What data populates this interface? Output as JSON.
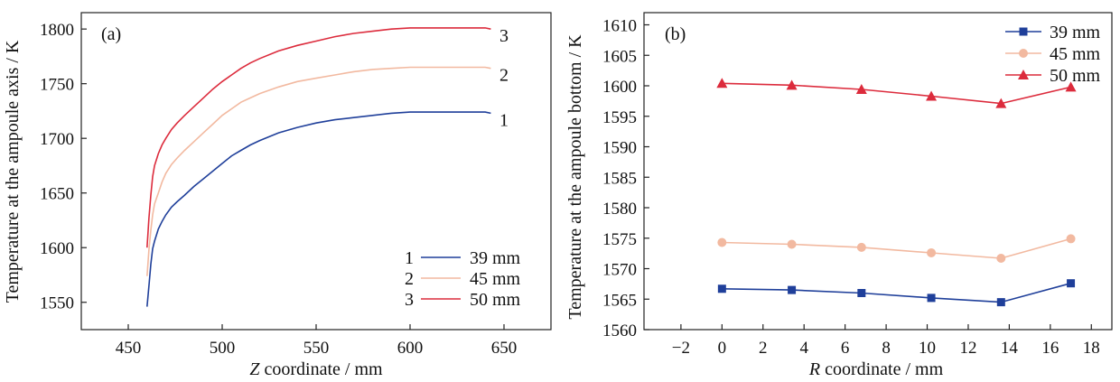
{
  "colors": {
    "39mm": "#1f3f9a",
    "45mm": "#f2b9a0",
    "50mm": "#dc2b3c",
    "axis": "#222222"
  },
  "chart_data": [
    {
      "type": "line",
      "panel_label": "(a)",
      "xlabel_italic": "Z",
      "xlabel_rest": " coordinate / mm",
      "ylabel": "Temperature at the ampoule axis / K",
      "xlim": [
        425,
        675
      ],
      "ylim": [
        1525,
        1815
      ],
      "xticks": [
        450,
        500,
        550,
        600,
        650
      ],
      "yticks": [
        1550,
        1600,
        1650,
        1700,
        1750,
        1800
      ],
      "legend_position": "bottom-right",
      "series": [
        {
          "name": "39 mm",
          "legend_number": "1",
          "curve_label": "1",
          "color": "#1f3f9a",
          "x": [
            460,
            461,
            462,
            463,
            464,
            466,
            468,
            470,
            473,
            476,
            480,
            485,
            490,
            495,
            500,
            505,
            510,
            515,
            520,
            530,
            540,
            550,
            560,
            570,
            580,
            590,
            600,
            610,
            620,
            630,
            635,
            640,
            643
          ],
          "y": [
            1546,
            1565,
            1585,
            1599,
            1606,
            1617,
            1624,
            1630,
            1637,
            1642,
            1648,
            1656,
            1663,
            1670,
            1677,
            1684,
            1689,
            1694,
            1698,
            1705,
            1710,
            1714,
            1717,
            1719,
            1721,
            1723,
            1724,
            1724,
            1724,
            1724,
            1724,
            1724,
            1723
          ]
        },
        {
          "name": "45 mm",
          "legend_number": "2",
          "curve_label": "2",
          "color": "#f2b9a0",
          "x": [
            460,
            461,
            462,
            463,
            464,
            466,
            468,
            470,
            473,
            476,
            480,
            485,
            490,
            495,
            500,
            505,
            510,
            515,
            520,
            530,
            540,
            550,
            560,
            570,
            580,
            590,
            600,
            610,
            620,
            630,
            635,
            640,
            643
          ],
          "y": [
            1574,
            1598,
            1616,
            1630,
            1640,
            1650,
            1660,
            1668,
            1676,
            1682,
            1689,
            1697,
            1705,
            1713,
            1721,
            1727,
            1733,
            1737,
            1741,
            1747,
            1752,
            1755,
            1758,
            1761,
            1763,
            1764,
            1765,
            1765,
            1765,
            1765,
            1765,
            1765,
            1764
          ]
        },
        {
          "name": "50 mm",
          "legend_number": "3",
          "curve_label": "3",
          "color": "#dc2b3c",
          "x": [
            460,
            461,
            462,
            463,
            464,
            466,
            468,
            470,
            473,
            476,
            480,
            485,
            490,
            495,
            500,
            505,
            510,
            515,
            520,
            530,
            540,
            550,
            560,
            570,
            580,
            590,
            600,
            610,
            620,
            630,
            635,
            640,
            643
          ],
          "y": [
            1600,
            1627,
            1648,
            1665,
            1675,
            1686,
            1694,
            1700,
            1708,
            1714,
            1721,
            1729,
            1737,
            1745,
            1752,
            1758,
            1764,
            1769,
            1773,
            1780,
            1785,
            1789,
            1793,
            1796,
            1798,
            1800,
            1801,
            1801,
            1801,
            1801,
            1801,
            1801,
            1800
          ]
        }
      ]
    },
    {
      "type": "line",
      "panel_label": "(b)",
      "xlabel_italic": "R",
      "xlabel_rest": " coordinate / mm",
      "ylabel": "Temperature at the ampoule bottom / K",
      "xlim": [
        -3.8,
        19
      ],
      "ylim": [
        1560,
        1612
      ],
      "xticks": [
        -2,
        0,
        2,
        4,
        6,
        8,
        10,
        12,
        14,
        16,
        18
      ],
      "xtick_labels": [
        "−2",
        "0",
        "2",
        "4",
        "6",
        "8",
        "10",
        "12",
        "14",
        "16",
        "18"
      ],
      "yticks": [
        1560,
        1565,
        1570,
        1575,
        1580,
        1585,
        1590,
        1595,
        1600,
        1605,
        1610
      ],
      "legend_position": "top-right",
      "series": [
        {
          "name": "39 mm",
          "marker": "square",
          "color": "#1f3f9a",
          "x": [
            0,
            3.4,
            6.8,
            10.2,
            13.6,
            17.0
          ],
          "y": [
            1566.7,
            1566.5,
            1566.0,
            1565.2,
            1564.5,
            1567.6
          ]
        },
        {
          "name": "45 mm",
          "marker": "circle",
          "color": "#f2b9a0",
          "x": [
            0,
            3.4,
            6.8,
            10.2,
            13.6,
            17.0
          ],
          "y": [
            1574.3,
            1574.0,
            1573.5,
            1572.6,
            1571.7,
            1574.9
          ]
        },
        {
          "name": "50 mm",
          "marker": "triangle",
          "color": "#dc2b3c",
          "x": [
            0,
            3.4,
            6.8,
            10.2,
            13.6,
            17.0
          ],
          "y": [
            1600.4,
            1600.1,
            1599.4,
            1598.3,
            1597.1,
            1599.8
          ]
        }
      ]
    }
  ]
}
